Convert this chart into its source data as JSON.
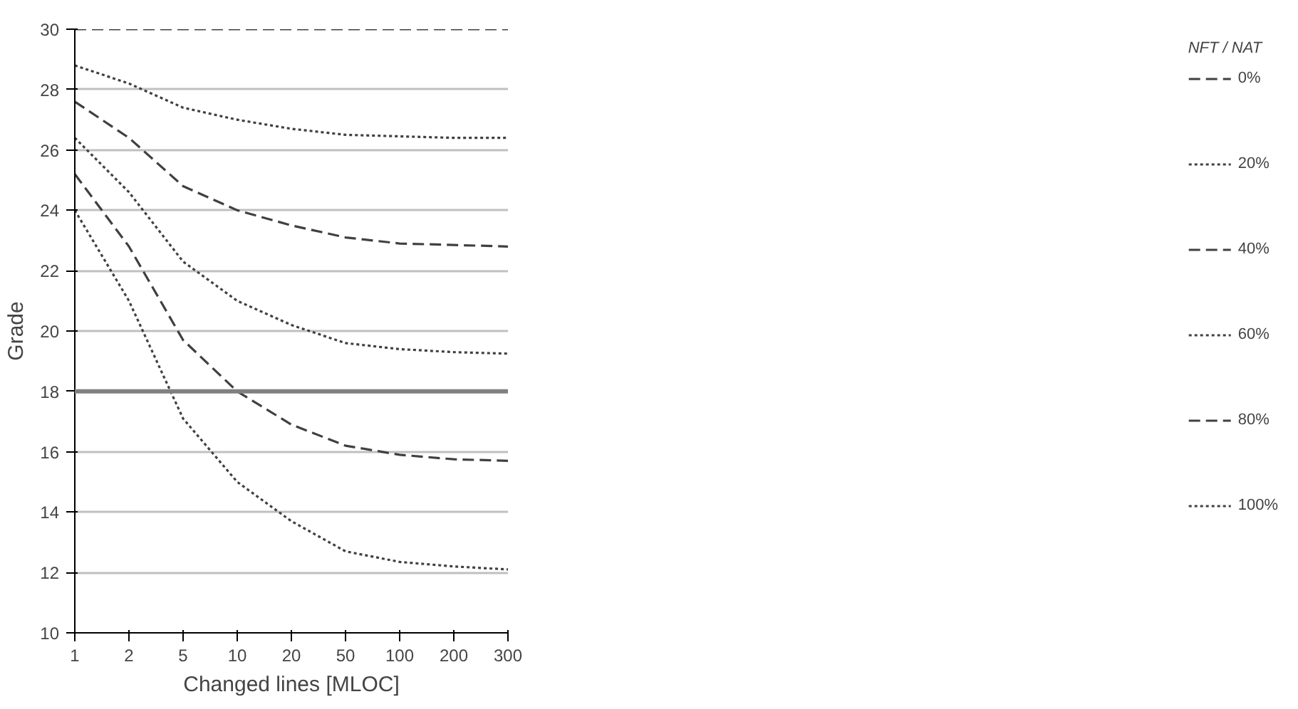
{
  "chart_data": {
    "type": "line",
    "xlabel": "Changed lines [MLOC]",
    "ylabel": "Grade",
    "legend_title": "NFT / NAT",
    "categories": [
      "1",
      "2",
      "5",
      "10",
      "20",
      "50",
      "100",
      "200",
      "300"
    ],
    "ylim": [
      10,
      30
    ],
    "yticks": [
      10,
      12,
      14,
      16,
      18,
      20,
      22,
      24,
      26,
      28,
      30
    ],
    "grid": "y",
    "legend": "right",
    "series": [
      {
        "name": "0%",
        "color": "#404040",
        "line_style": "dashed",
        "values": [
          30,
          30,
          30,
          30,
          30,
          30,
          30,
          30,
          30
        ]
      },
      {
        "name": "20%",
        "color": "#404040",
        "line_style": "dotted",
        "values": [
          28.8,
          28.2,
          27.4,
          27.0,
          26.7,
          26.5,
          26.45,
          26.4,
          26.4
        ]
      },
      {
        "name": "40%",
        "color": "#404040",
        "line_style": "dashed",
        "values": [
          27.6,
          26.4,
          24.8,
          24.0,
          23.5,
          23.1,
          22.9,
          22.85,
          22.8
        ]
      },
      {
        "name": "60%",
        "color": "#404040",
        "line_style": "dotted",
        "values": [
          26.4,
          24.6,
          22.3,
          21.0,
          20.2,
          19.6,
          19.4,
          19.3,
          19.25
        ]
      },
      {
        "name": "80%",
        "color": "#404040",
        "line_style": "dashed",
        "values": [
          25.2,
          22.8,
          19.7,
          18.0,
          16.9,
          16.2,
          15.9,
          15.75,
          15.7
        ]
      },
      {
        "name": "100%",
        "color": "#404040",
        "line_style": "dotted",
        "values": [
          24.0,
          21.0,
          17.1,
          15.0,
          13.7,
          12.7,
          12.35,
          12.2,
          12.1
        ]
      }
    ],
    "ref_lines": [
      {
        "axis": "y",
        "value": 18,
        "color": "#808080"
      }
    ]
  }
}
